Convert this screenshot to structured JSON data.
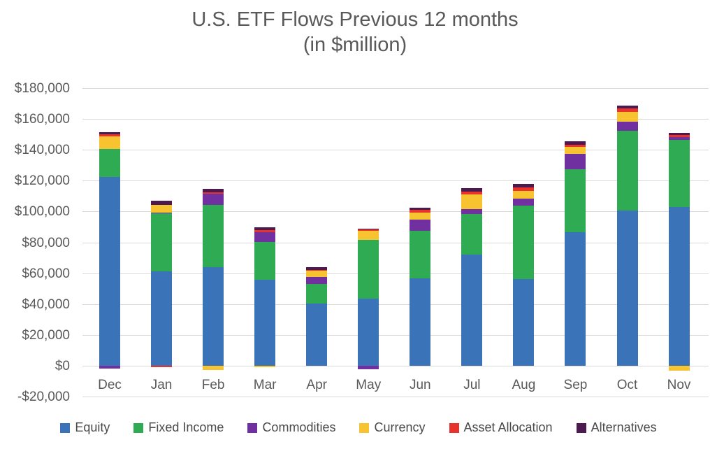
{
  "title": {
    "line1": "U.S. ETF Flows Previous 12 months",
    "line2": "(in $million)"
  },
  "chart_data": {
    "type": "bar",
    "stacked": true,
    "title": "U.S. ETF Flows Previous 12 months (in $million)",
    "xlabel": "",
    "ylabel": "",
    "categories": [
      "Dec",
      "Jan",
      "Feb",
      "Mar",
      "Apr",
      "May",
      "Jun",
      "Jul",
      "Aug",
      "Sep",
      "Oct",
      "Nov"
    ],
    "series": [
      {
        "name": "Equity",
        "color": "#3B73B9",
        "values": [
          122500,
          61400,
          64300,
          56100,
          40500,
          43600,
          56800,
          72300,
          56400,
          86900,
          101000,
          103300
        ]
      },
      {
        "name": "Fixed Income",
        "color": "#2FAB53",
        "values": [
          18300,
          37800,
          40000,
          24200,
          12900,
          38100,
          30800,
          26200,
          47600,
          40600,
          51400,
          43400
        ]
      },
      {
        "name": "Commodities",
        "color": "#7030A0",
        "values": [
          -1800,
          300,
          7500,
          6300,
          4500,
          -2000,
          7300,
          3300,
          4700,
          10300,
          6000,
          1600
        ]
      },
      {
        "name": "Currency",
        "color": "#F7C331",
        "values": [
          8300,
          5200,
          -2500,
          -700,
          4200,
          6000,
          4800,
          9700,
          5000,
          4400,
          6400,
          -3000
        ]
      },
      {
        "name": "Asset Allocation",
        "color": "#E8332C",
        "values": [
          1000,
          -700,
          1000,
          1500,
          400,
          700,
          1500,
          1500,
          2100,
          1500,
          2100,
          1500
        ]
      },
      {
        "name": "Alternatives",
        "color": "#4C1A4F",
        "values": [
          1700,
          2500,
          2000,
          2000,
          1500,
          700,
          1600,
          2400,
          2400,
          2000,
          2100,
          1200
        ]
      }
    ],
    "ylim": [
      -20000,
      180000
    ],
    "ytick_step": 20000,
    "ytick_labels": [
      "-$20,000",
      "$0",
      "$20,000",
      "$40,000",
      "$60,000",
      "$80,000",
      "$100,000",
      "$120,000",
      "$140,000",
      "$160,000",
      "$180,000"
    ],
    "grid": true,
    "legend_position": "bottom"
  },
  "colors": {
    "text": "#595959",
    "gridline": "#D9D9D9",
    "background": "#FFFFFF"
  }
}
